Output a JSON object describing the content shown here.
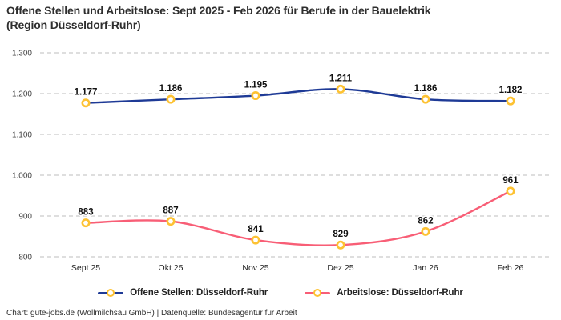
{
  "header": {
    "line1": "Offene Stellen und Arbeitslose: Sept 2025 - Feb 2026 für Berufe in der Bauelektrik",
    "line2": "(Region Düsseldorf-Ruhr)"
  },
  "footer": {
    "text": "Chart: gute-jobs.de (Wollmilchsau GmbH) | Datenquelle: Bundesagentur für Arbeit"
  },
  "chart_data": {
    "type": "line",
    "title": "Offene Stellen und Arbeitslose: Sept 2025 - Feb 2026 für Berufe in der Bauelektrik (Region Düsseldorf-Ruhr)",
    "categories": [
      "Sept 25",
      "Okt 25",
      "Nov 25",
      "Dez 25",
      "Jan 26",
      "Feb 26"
    ],
    "series": [
      {
        "name": "Offene Stellen: Düsseldorf-Ruhr",
        "values": [
          1177,
          1186,
          1195,
          1211,
          1186,
          1182
        ],
        "labels": [
          "1.177",
          "1.186",
          "1.195",
          "1.211",
          "1.186",
          "1.182"
        ],
        "color": "#1e3a96"
      },
      {
        "name": "Arbeitslose: Düsseldorf-Ruhr",
        "values": [
          883,
          887,
          841,
          829,
          862,
          961
        ],
        "labels": [
          "883",
          "887",
          "841",
          "829",
          "862",
          "961"
        ],
        "color": "#f85e76"
      }
    ],
    "ylim": [
      800,
      1300
    ],
    "yticks": [
      800,
      900,
      1000,
      1100,
      1200,
      1300
    ],
    "ytick_labels": [
      "800",
      "900",
      "1.000",
      "1.100",
      "1.200",
      "1.300"
    ],
    "grid": true,
    "legend_position": "bottom",
    "marker": {
      "ring_color": "#fdc233",
      "fill_color": "#ffffff"
    },
    "grid_color": "#c9c9c9",
    "tick_label_color": "#444444",
    "category_label_color": "#222222",
    "data_label_color": "#111111"
  }
}
